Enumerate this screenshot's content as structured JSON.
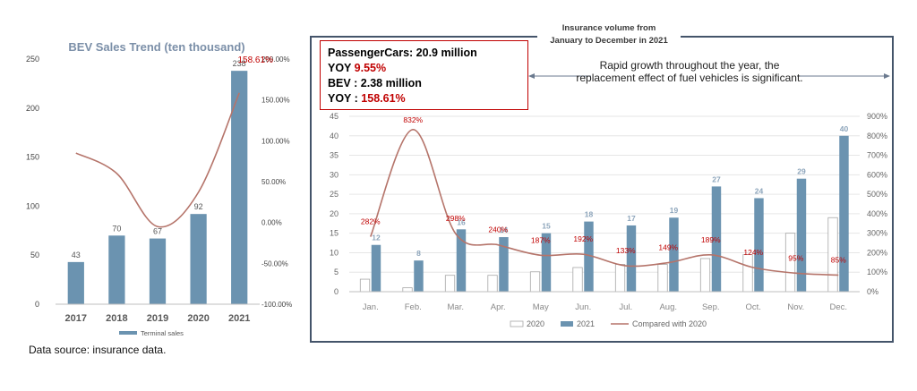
{
  "left_chart": {
    "title": "BEV Sales Trend (ten thousand)",
    "legend_label": "Terminal sales",
    "bar_color": "#6b93b0",
    "line_color": "#b5746a"
  },
  "right_chart": {
    "title_line1": "Insurance volume from",
    "title_line2": "January to December in 2021",
    "info": {
      "passenger_label": "PassengerCars: 20.9 million",
      "yoy1_label": "YOY",
      "yoy1_value": "9.55%",
      "bev_label": "BEV :  2.38 million",
      "yoy2_label": "YOY :",
      "yoy2_value": "158.61%"
    },
    "note": "Rapid growth throughout the year, the replacement effect of fuel vehicles is significant.",
    "legend": [
      "2020",
      "2021",
      "Compared with 2020"
    ],
    "bar_color": "#6b93b0",
    "line_color": "#b5746a",
    "label_color": "#c00000"
  },
  "source_note": "Data source: insurance data.",
  "chart_data": [
    {
      "type": "bar",
      "title": "BEV Sales Trend (ten thousand)",
      "categories": [
        "2017",
        "2018",
        "2019",
        "2020",
        "2021"
      ],
      "series": [
        {
          "name": "Terminal sales",
          "type": "bar",
          "values": [
            43,
            70,
            67,
            92,
            238
          ]
        },
        {
          "type": "line",
          "axis": "right",
          "values": [
            85,
            60,
            -5,
            37,
            158.61
          ],
          "labels": [
            "",
            "",
            "",
            "",
            "158.61%"
          ]
        }
      ],
      "ylim": [
        0,
        250
      ],
      "yticks": [
        "0",
        "50",
        "100",
        "150",
        "200",
        "250"
      ],
      "y2lim": [
        -100,
        200
      ],
      "y2ticks": [
        "-100.00%",
        "-50.00%",
        "0.00%",
        "50.00%",
        "100.00%",
        "150.00%",
        "200.00%"
      ]
    },
    {
      "type": "bar",
      "title": "Insurance volume from January to December in 2021",
      "categories": [
        "Jan.",
        "Feb.",
        "Mar.",
        "Apr.",
        "May",
        "Jun.",
        "Jul.",
        "Aug.",
        "Sep.",
        "Oct.",
        "Nov.",
        "Dec."
      ],
      "series": [
        {
          "name": "2020",
          "type": "bar",
          "values": [
            3.2,
            1,
            4.2,
            4.2,
            5.1,
            6.2,
            7,
            7,
            8.5,
            9.5,
            15,
            19
          ]
        },
        {
          "name": "2021",
          "type": "bar",
          "values": [
            12,
            8,
            16,
            14,
            15,
            18,
            17,
            19,
            27,
            24,
            29,
            40
          ],
          "labels": [
            "12",
            "8",
            "16",
            "14",
            "15",
            "18",
            "17",
            "19",
            "27",
            "24",
            "29",
            "40"
          ]
        },
        {
          "name": "Compared with 2020",
          "type": "line",
          "axis": "right",
          "values": [
            282,
            832,
            298,
            240,
            187,
            192,
            133,
            149,
            189,
            124,
            95,
            85
          ],
          "labels": [
            "282%",
            "832%",
            "298%",
            "240%",
            "187%",
            "192%",
            "133%",
            "149%",
            "189%",
            "124%",
            "95%",
            "85%"
          ]
        }
      ],
      "ylim": [
        0,
        45
      ],
      "yticks": [
        "0",
        "5",
        "10",
        "15",
        "20",
        "25",
        "30",
        "35",
        "40",
        "45"
      ],
      "y2lim": [
        0,
        900
      ],
      "y2ticks": [
        "0%",
        "100%",
        "200%",
        "300%",
        "400%",
        "500%",
        "600%",
        "700%",
        "800%",
        "900%"
      ],
      "grid": true
    }
  ]
}
